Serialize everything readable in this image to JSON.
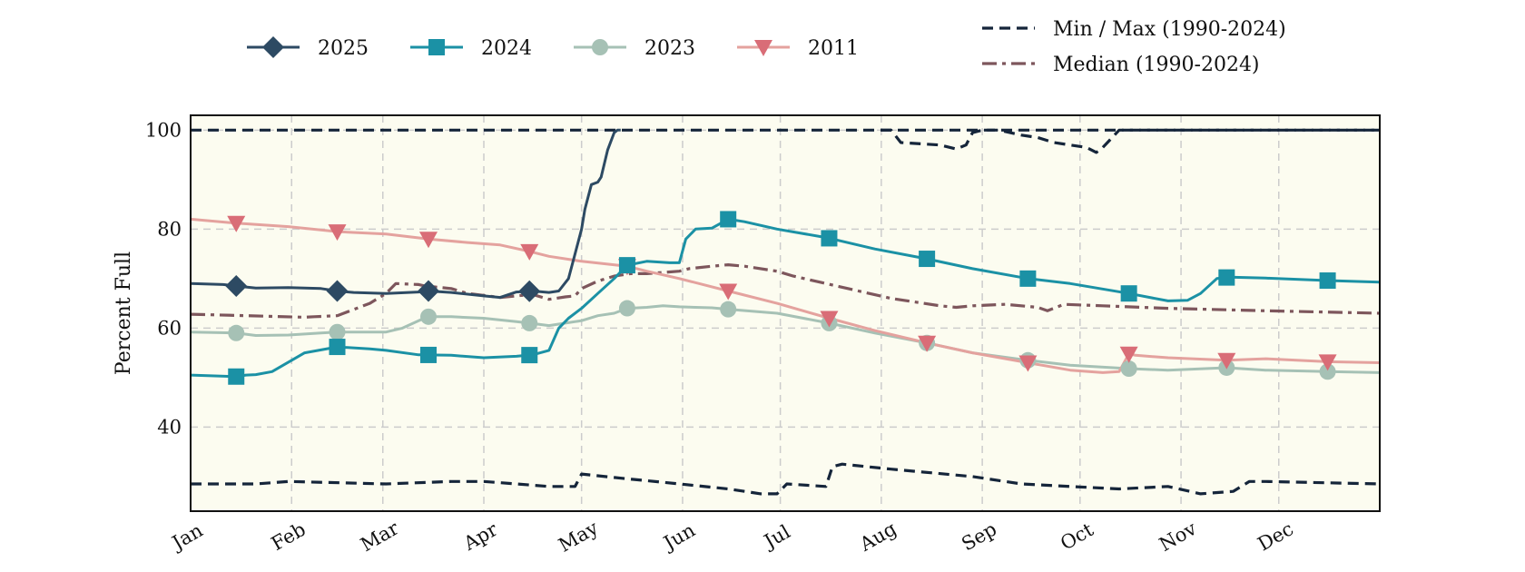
{
  "chart_data": {
    "type": "line",
    "title": "",
    "xlabel": "",
    "ylabel": "Percent Full",
    "ylim": [
      23,
      103
    ],
    "xlim": [
      0,
      365
    ],
    "y_ticks": [
      40,
      60,
      80,
      100
    ],
    "x_tick_labels": [
      "Jan",
      "Feb",
      "Mar",
      "Apr",
      "May",
      "Jun",
      "Jul",
      "Aug",
      "Sep",
      "Oct",
      "Nov",
      "Dec"
    ],
    "x_ticks_day": [
      0,
      31,
      59,
      90,
      120,
      151,
      181,
      212,
      243,
      273,
      304,
      334
    ],
    "grid": true,
    "legend_placement": "top",
    "plot_background": "#fcfcf0",
    "series": [
      {
        "name": "2025",
        "color": "#2d4a63",
        "marker": "diamond",
        "dash": "solid",
        "width": 3,
        "x": [
          0,
          10,
          14,
          20,
          30,
          40,
          45,
          50,
          60,
          70,
          73,
          80,
          90,
          95,
          100,
          105,
          110,
          113,
          116,
          118,
          120,
          121,
          123,
          125,
          126,
          128,
          130,
          131,
          132
        ],
        "y": [
          69,
          68.8,
          68.5,
          68.1,
          68.2,
          68,
          67.5,
          67.2,
          67,
          67.3,
          67.5,
          67.2,
          66.5,
          66.2,
          67.3,
          67.5,
          67.2,
          67.5,
          70,
          75,
          80,
          84,
          89,
          89.5,
          90.5,
          96,
          99.5,
          100,
          100
        ],
        "markers_x": [
          14,
          45,
          73,
          104
        ]
      },
      {
        "name": "2024",
        "color": "#1b91a5",
        "marker": "square",
        "dash": "solid",
        "width": 3,
        "x": [
          0,
          14,
          17,
          20,
          25,
          35,
          45,
          55,
          60,
          70,
          80,
          90,
          100,
          105,
          110,
          113,
          116,
          120,
          125,
          130,
          134,
          140,
          147,
          150,
          152,
          155,
          160,
          165,
          170,
          180,
          195,
          210,
          226,
          240,
          257,
          270,
          288,
          300,
          306,
          310,
          315,
          319,
          330,
          349,
          365
        ],
        "y": [
          50.5,
          50.2,
          50.5,
          50.6,
          51.2,
          55,
          56.2,
          55.8,
          55.5,
          54.6,
          54.5,
          54,
          54.3,
          54.6,
          55.5,
          60,
          62,
          64,
          67,
          70,
          72.7,
          73.5,
          73.2,
          73.2,
          78,
          80,
          80.2,
          82,
          81.5,
          80,
          78.3,
          76,
          74,
          72,
          70,
          69,
          67,
          65.5,
          65.6,
          67,
          70,
          70.3,
          70.1,
          69.6,
          69.3
        ],
        "markers_x": [
          14,
          45,
          73,
          104,
          134,
          165,
          196,
          226,
          257,
          288,
          318,
          349
        ]
      },
      {
        "name": "2023",
        "color": "#a6c1b5",
        "marker": "circle",
        "dash": "solid",
        "width": 3,
        "x": [
          0,
          14,
          20,
          30,
          40,
          45,
          55,
          60,
          65,
          70,
          73,
          80,
          90,
          100,
          104,
          110,
          115,
          120,
          125,
          130,
          134,
          140,
          145,
          150,
          160,
          165,
          180,
          196,
          210,
          226,
          240,
          257,
          270,
          288,
          300,
          318,
          330,
          349,
          365
        ],
        "y": [
          59.2,
          59,
          58.5,
          58.6,
          59,
          59.2,
          59.2,
          59.2,
          60,
          61.5,
          62.3,
          62.3,
          62,
          61.3,
          61,
          60.5,
          61,
          61.5,
          62.5,
          63,
          64,
          64.2,
          64.5,
          64.3,
          64.1,
          63.8,
          63,
          61,
          59,
          57,
          55,
          53.5,
          52.5,
          51.8,
          51.5,
          52,
          51.5,
          51.2,
          51
        ],
        "markers_x": [
          14,
          45,
          73,
          104,
          134,
          165,
          196,
          226,
          257,
          288,
          318,
          349
        ]
      },
      {
        "name": "2011",
        "color": "#e4a29e",
        "marker_color": "#d96d77",
        "marker": "triangle-down",
        "dash": "solid",
        "width": 3,
        "x": [
          0,
          14,
          30,
          45,
          60,
          73,
          85,
          95,
          104,
          110,
          120,
          134,
          140,
          150,
          165,
          180,
          196,
          210,
          226,
          240,
          257,
          270,
          280,
          285,
          288,
          290,
          300,
          318,
          330,
          349,
          365
        ],
        "y": [
          82,
          81.2,
          80.5,
          79.5,
          79,
          78,
          77.3,
          76.8,
          75.5,
          74.5,
          73.5,
          72.5,
          71.5,
          70,
          67.5,
          65,
          62,
          59.5,
          57,
          55,
          53,
          51.5,
          51,
          51.2,
          54.8,
          54.5,
          54,
          53.5,
          53.8,
          53.2,
          53
        ],
        "markers_x": [
          14,
          45,
          73,
          104,
          134,
          165,
          196,
          226,
          257,
          288,
          318,
          349
        ]
      },
      {
        "name": "Min / Max (1990-2024)",
        "color": "#15253a",
        "marker": "none",
        "dash": "dashed",
        "width": 3.2,
        "x": [
          0,
          365
        ],
        "y": [
          100,
          100
        ]
      },
      {
        "name": "",
        "color": "#15253a",
        "marker": "none",
        "dash": "dashed",
        "width": 3.2,
        "x": [
          212,
          215,
          218,
          225,
          230,
          235,
          238,
          240,
          243,
          248,
          255,
          260,
          265,
          270,
          275,
          278,
          280,
          285,
          290,
          365
        ],
        "y": [
          100,
          100,
          97.5,
          97.2,
          97,
          96.2,
          97,
          99.5,
          100,
          100,
          99,
          98.5,
          97.5,
          97,
          96.5,
          95.5,
          96.5,
          100,
          100,
          100
        ]
      },
      {
        "name": "",
        "color": "#15253a",
        "marker": "none",
        "dash": "dashed",
        "width": 3.2,
        "x": [
          0,
          20,
          30,
          60,
          80,
          90,
          100,
          110,
          118,
          120,
          130,
          150,
          165,
          175,
          180,
          183,
          195,
          197,
          200,
          215,
          240,
          255,
          270,
          285,
          300,
          310,
          320,
          325,
          330,
          365
        ],
        "y": [
          28.5,
          28.5,
          29,
          28.5,
          29,
          29,
          28.5,
          28,
          28,
          30.5,
          29.8,
          28.5,
          27.5,
          26.5,
          26.5,
          28.5,
          28,
          32,
          32.5,
          31.5,
          30,
          28.5,
          28,
          27.5,
          28,
          26.5,
          27,
          29,
          29,
          28.5
        ]
      },
      {
        "name": "Median (1990-2024)",
        "color": "#7d565c",
        "marker": "none",
        "dash": "dashdot",
        "width": 3.2,
        "x": [
          0,
          35,
          38,
          45,
          47,
          55,
          60,
          63,
          70,
          72,
          80,
          85,
          95,
          100,
          105,
          110,
          115,
          118,
          120,
          125,
          130,
          135,
          140,
          150,
          153,
          160,
          165,
          170,
          180,
          185,
          195,
          205,
          215,
          230,
          235,
          240,
          250,
          260,
          263,
          268,
          280,
          300,
          330,
          365
        ],
        "y": [
          62.8,
          62.2,
          62.3,
          62.5,
          63,
          65,
          67,
          69,
          68.8,
          68.5,
          68,
          67,
          66.2,
          66.5,
          66.8,
          65.8,
          66.3,
          66.5,
          68,
          69.5,
          70.5,
          71,
          71,
          71.5,
          72,
          72.5,
          72.8,
          72.5,
          71.5,
          70.5,
          69,
          67.5,
          66,
          64.5,
          64.2,
          64.5,
          64.8,
          64.2,
          63.5,
          64.8,
          64.5,
          64,
          63.5,
          63
        ]
      }
    ]
  }
}
